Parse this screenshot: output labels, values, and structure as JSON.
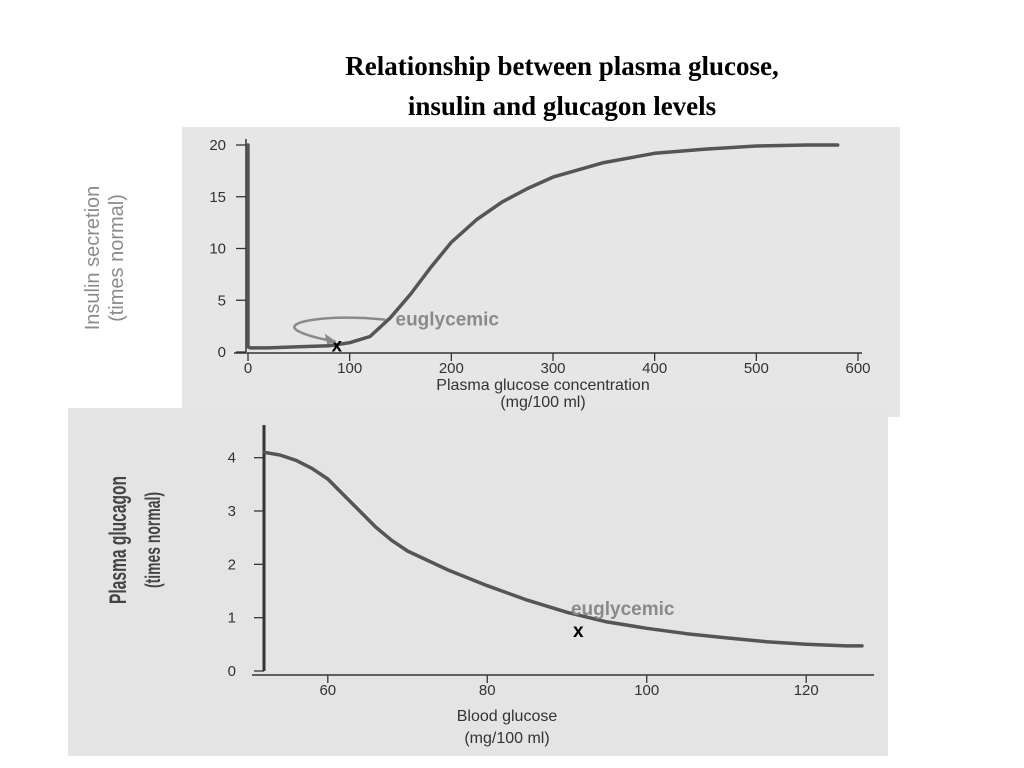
{
  "slide": {
    "title_line1": "Relationship between plasma glucose,",
    "title_line2": "insulin and glucagon levels"
  },
  "colors": {
    "curve": "#555555",
    "annotation": "#8a8a8a",
    "scan_background": "#e6e6e6"
  },
  "chart_data": [
    {
      "type": "line",
      "title": "",
      "xlabel": "Plasma glucose concentration",
      "xlabel_units": "(mg/100 ml)",
      "ylabel": "Insulin secretion",
      "ylabel_units": "(times normal)",
      "xlim": [
        0,
        600
      ],
      "ylim": [
        0,
        20
      ],
      "x_ticks": [
        0,
        100,
        200,
        300,
        400,
        500,
        600
      ],
      "y_ticks": [
        0,
        5,
        10,
        15,
        20
      ],
      "grid": false,
      "series": [
        {
          "x": [
            0,
            0,
            2,
            20,
            50,
            80,
            100,
            120,
            140,
            160,
            180,
            200,
            225,
            250,
            275,
            300,
            350,
            400,
            450,
            500,
            550,
            580
          ],
          "y": [
            20,
            0.5,
            0.4,
            0.4,
            0.5,
            0.6,
            0.9,
            1.5,
            3.3,
            5.6,
            8.2,
            10.6,
            12.8,
            14.5,
            15.8,
            16.9,
            18.3,
            19.2,
            19.6,
            19.9,
            20,
            20
          ]
        }
      ],
      "annotations": [
        {
          "text": "euglycemic",
          "x": 90,
          "y": 0.8,
          "marker": "x",
          "pointer": "loop-arrow"
        }
      ]
    },
    {
      "type": "line",
      "title": "",
      "xlabel": "Blood glucose",
      "xlabel_units": "(mg/100 ml)",
      "ylabel": "Plasma glucagon",
      "ylabel_units": "(times normal)",
      "xlim": [
        52,
        128
      ],
      "ylim": [
        0,
        4.5
      ],
      "x_ticks": [
        60,
        80,
        100,
        120
      ],
      "y_ticks": [
        0,
        1,
        2,
        3,
        4
      ],
      "grid": false,
      "series": [
        {
          "x": [
            52,
            54,
            56,
            58,
            60,
            62,
            64,
            66,
            68,
            70,
            75,
            80,
            85,
            90,
            95,
            100,
            105,
            110,
            115,
            120,
            125,
            127
          ],
          "y": [
            4.1,
            4.05,
            3.95,
            3.8,
            3.6,
            3.3,
            3.0,
            2.7,
            2.45,
            2.25,
            1.9,
            1.6,
            1.33,
            1.1,
            0.92,
            0.8,
            0.7,
            0.62,
            0.55,
            0.5,
            0.47,
            0.47
          ]
        }
      ],
      "annotations": [
        {
          "text": "euglycemic",
          "x": 91.5,
          "y": 0.92,
          "marker": "x"
        }
      ]
    }
  ]
}
